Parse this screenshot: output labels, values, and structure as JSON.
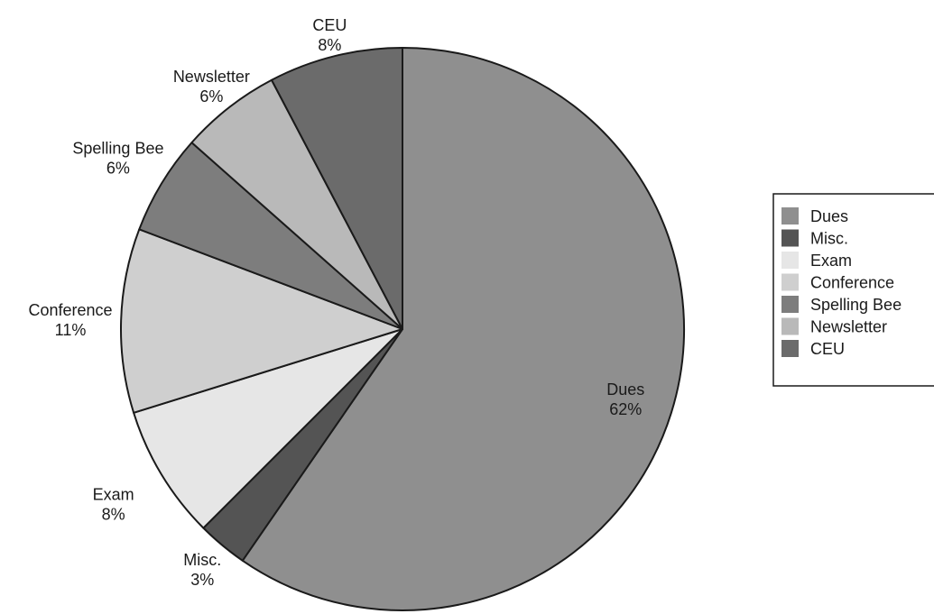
{
  "chart_data": {
    "type": "pie",
    "title": "",
    "start_angle_deg": 0,
    "direction": "clockwise",
    "legend": {
      "placement": "right",
      "entries": [
        "Dues",
        "Misc.",
        "Exam",
        "Conference",
        "Spelling Bee",
        "Newsletter",
        "CEU"
      ]
    },
    "slices": [
      {
        "label": "Dues",
        "percent_label": "62%",
        "value": 62,
        "color": "#8f8f8f"
      },
      {
        "label": "Misc.",
        "percent_label": "3%",
        "value": 3,
        "color": "#545454"
      },
      {
        "label": "Exam",
        "percent_label": "8%",
        "value": 8,
        "color": "#e6e6e6"
      },
      {
        "label": "Conference",
        "percent_label": "11%",
        "value": 11,
        "color": "#cfcfcf"
      },
      {
        "label": "Spelling Bee",
        "percent_label": "6%",
        "value": 6,
        "color": "#7d7d7d"
      },
      {
        "label": "Newsletter",
        "percent_label": "6%",
        "value": 6,
        "color": "#b9b9b9"
      },
      {
        "label": "CEU",
        "percent_label": "8%",
        "value": 8,
        "color": "#6b6b6b"
      }
    ]
  }
}
